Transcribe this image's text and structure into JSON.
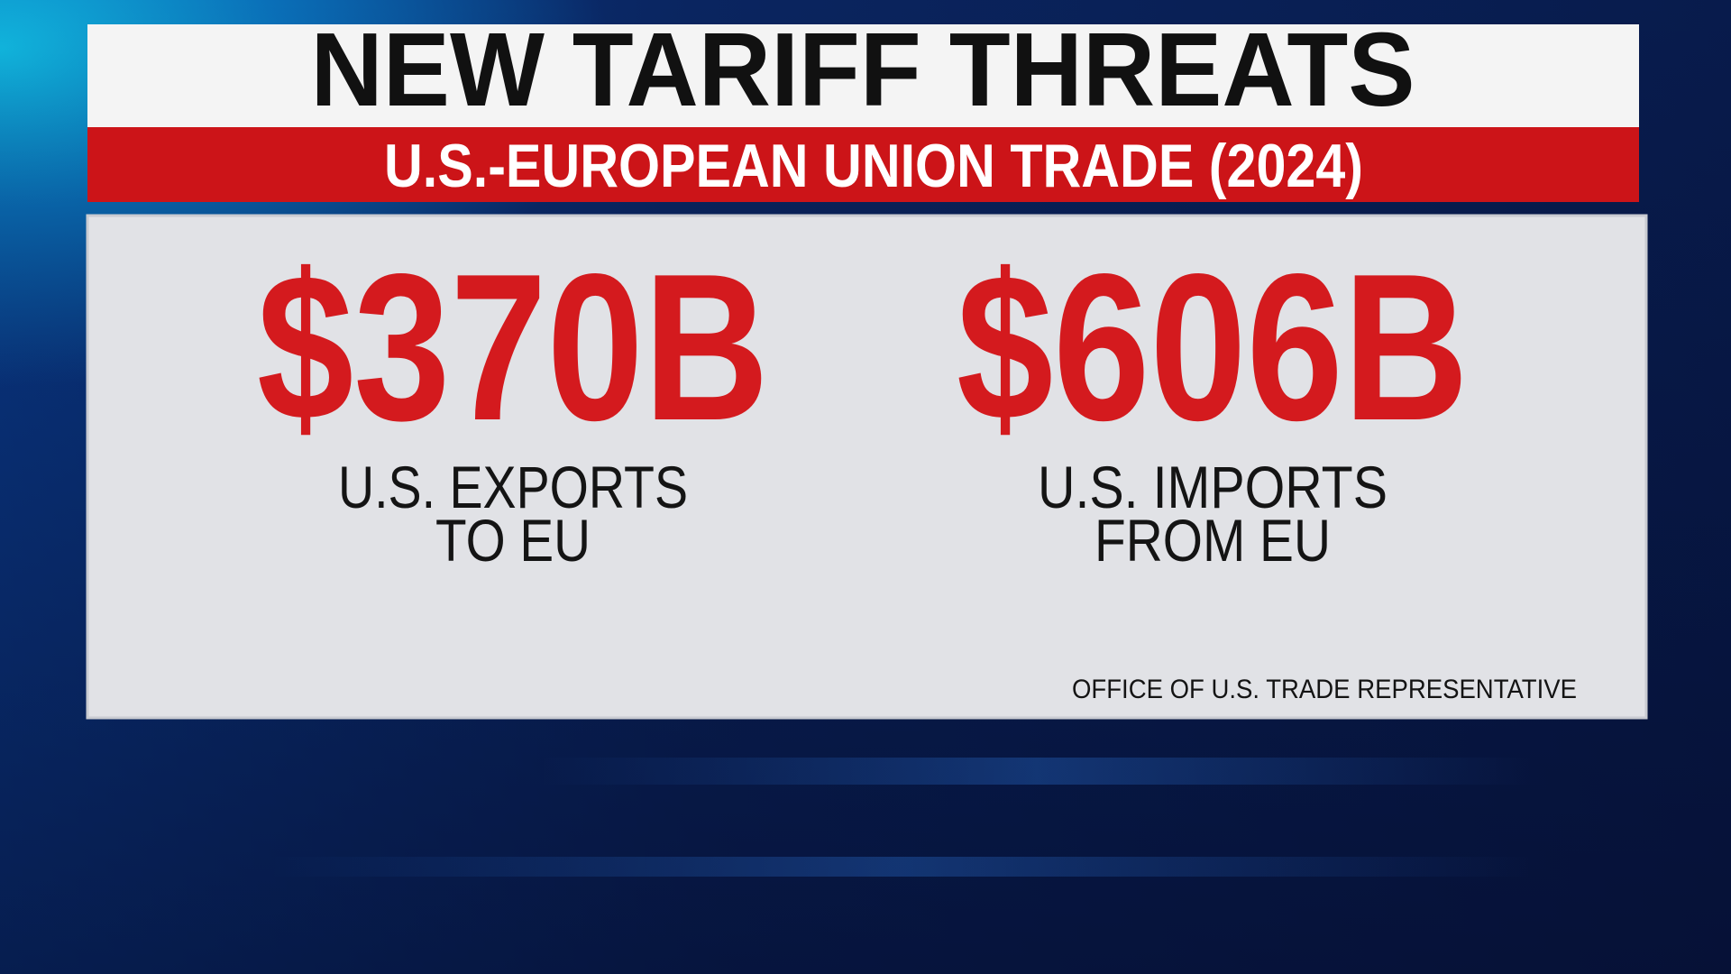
{
  "header": {
    "title": "NEW TARIFF THREATS",
    "subtitle": "U.S.-EUROPEAN UNION TRADE (2024)"
  },
  "stats": [
    {
      "value": "$370B",
      "label": [
        "U.S. EXPORTS",
        "TO EU"
      ]
    },
    {
      "value": "$606B",
      "label": [
        "U.S. IMPORTS",
        "FROM EU"
      ]
    }
  ],
  "source": "OFFICE OF U.S. TRADE REPRESENTATIVE"
}
